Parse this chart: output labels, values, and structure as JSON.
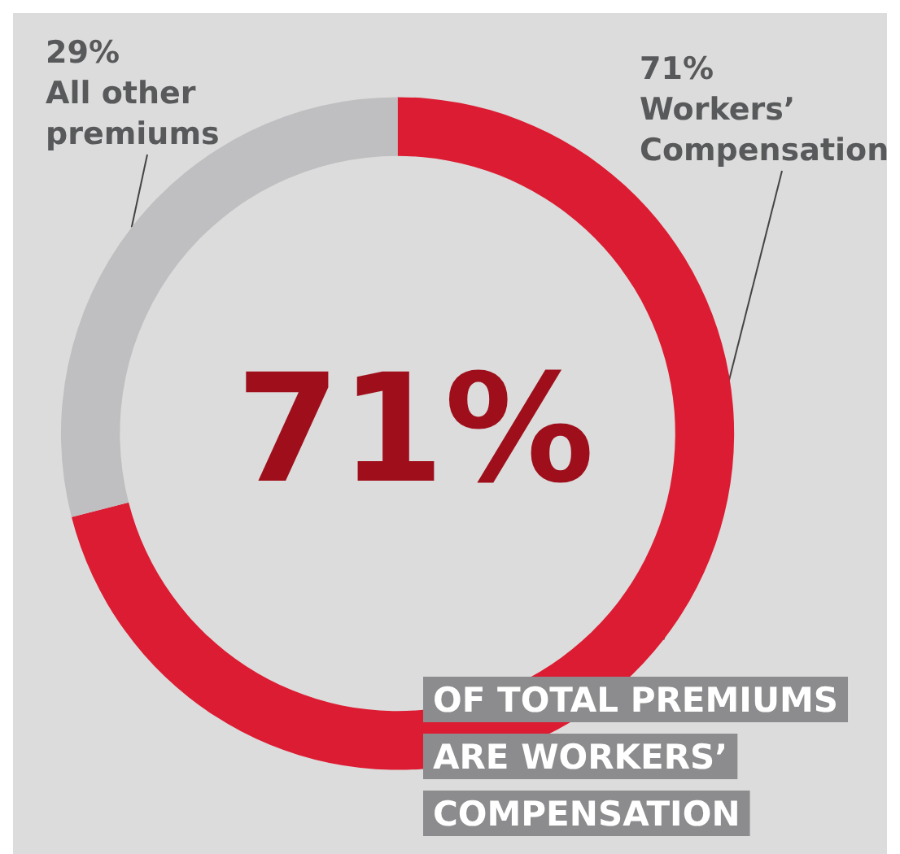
{
  "chart_data": {
    "type": "donut",
    "categories": [
      "Workers’ Compensation",
      "All other premiums"
    ],
    "values": [
      71,
      29
    ],
    "colors": [
      "#dc1c32",
      "#bfbfc1"
    ],
    "annotations": [
      "71%",
      "OF TOTAL PREMIUMS\nARE WORKERS’\nCOMPENSATION"
    ],
    "legend": false,
    "value_labels": [
      "71%",
      "29%"
    ]
  }
}
